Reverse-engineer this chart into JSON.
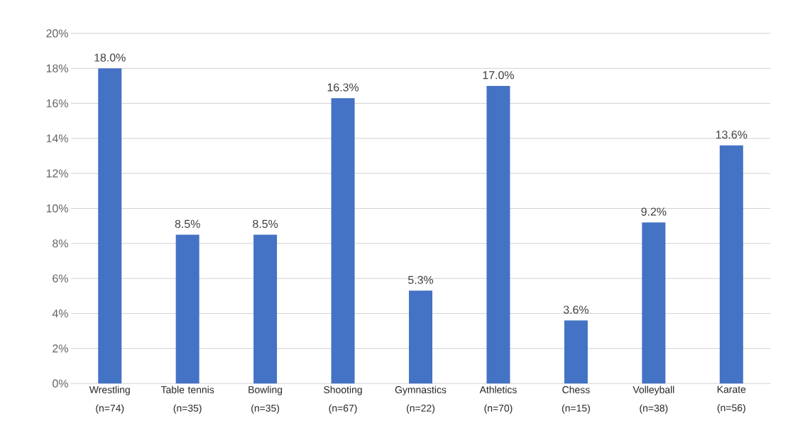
{
  "chart_data": {
    "type": "bar",
    "categories": [
      "Wrestling (n=74)",
      "Table tennis (n=35)",
      "Bowling (n=35)",
      "Shooting (n=67)",
      "Gymnastics (n=22)",
      "Athletics (n=70)",
      "Chess (n=15)",
      "Volleyball (n=38)",
      "Karate (n=56)"
    ],
    "values": [
      18.0,
      8.5,
      8.5,
      16.3,
      5.3,
      17.0,
      3.6,
      9.2,
      13.6
    ],
    "value_labels": [
      "18.0%",
      "8.5%",
      "8.5%",
      "16.3%",
      "5.3%",
      "17.0%",
      "3.6%",
      "9.2%",
      "13.6%"
    ],
    "color": "#4472c4",
    "ylim": [
      0,
      20
    ],
    "yticks": [
      {
        "value": 0,
        "label": "0%"
      },
      {
        "value": 2,
        "label": "2%"
      },
      {
        "value": 4,
        "label": "4%"
      },
      {
        "value": 6,
        "label": "6%"
      },
      {
        "value": 8,
        "label": "8%"
      },
      {
        "value": 10,
        "label": "10%"
      },
      {
        "value": 12,
        "label": "12%"
      },
      {
        "value": 14,
        "label": "14%"
      },
      {
        "value": 16,
        "label": "16%"
      },
      {
        "value": 18,
        "label": "18%"
      },
      {
        "value": 20,
        "label": "20%"
      }
    ],
    "grid": "y"
  }
}
